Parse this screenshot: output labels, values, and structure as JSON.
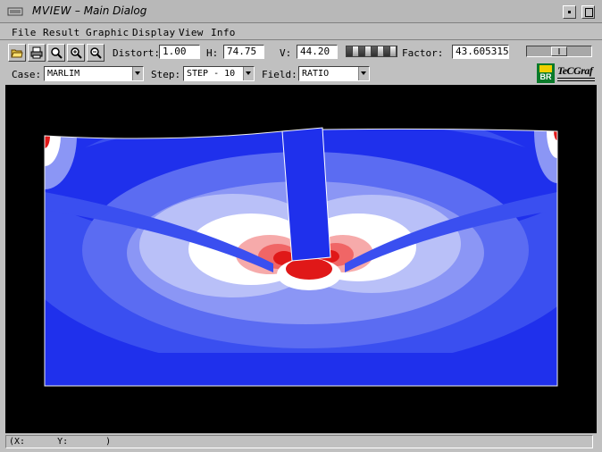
{
  "window": {
    "app": "MVIEW",
    "separator": " – ",
    "title": "Main Dialog"
  },
  "menu": [
    "File",
    "Result",
    "Graphic",
    "Display",
    "View",
    "Info"
  ],
  "toolbar": {
    "icons": [
      "open-folder-icon",
      "print-icon",
      "zoom-icon",
      "zoom-in-icon",
      "zoom-out-icon"
    ],
    "distort_label": "Distort:",
    "distort_value": "1.00",
    "h_label": "H:",
    "h_value": "74.75",
    "v_label": "V:",
    "v_value": "44.20",
    "factor_label": "Factor:",
    "factor_value": "43.605315",
    "slider_fraction": 0.5
  },
  "selectors": {
    "case_label": "Case:",
    "case_value": "MARLIM",
    "step_label": "Step:",
    "step_value": "STEP - 10",
    "field_label": "Field:",
    "field_value": "RATIO"
  },
  "logo": {
    "br": "BR",
    "tecgraf": "TeCGraf"
  },
  "status": {
    "x_label": "(X:",
    "y_label": "Y:",
    "close": ")"
  },
  "colors": {
    "deep_blue": "#1f30ec",
    "mid_blue": "#3a4ff0",
    "light_blue": "#5b6cf2",
    "pale_blue": "#8b96f5",
    "lavender": "#b9c0f8",
    "white": "#ffffff",
    "pale_red": "#f6aaaa",
    "mid_red": "#f06666",
    "red": "#e01818",
    "background": "#000000"
  }
}
